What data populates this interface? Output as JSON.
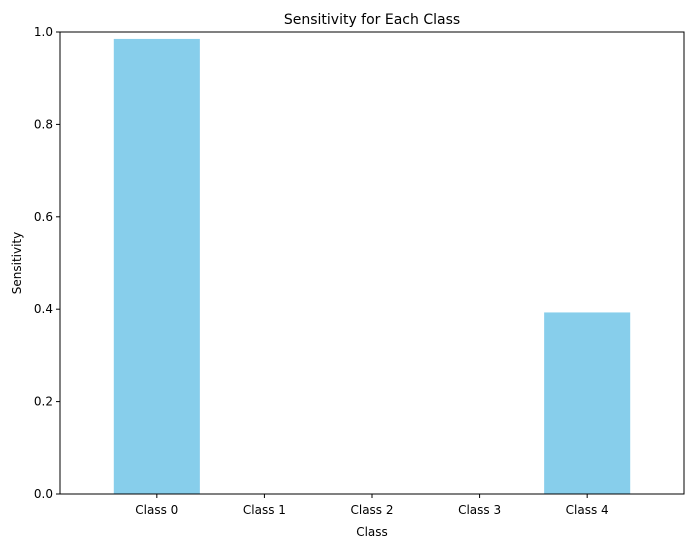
{
  "chart_data": {
    "type": "bar",
    "title": "Sensitivity for Each Class",
    "xlabel": "Class",
    "ylabel": "Sensitivity",
    "categories": [
      "Class 0",
      "Class 1",
      "Class 2",
      "Class 3",
      "Class 4"
    ],
    "values": [
      0.985,
      0.0,
      0.0,
      0.0,
      0.393
    ],
    "ylim": [
      0,
      1
    ],
    "yticks": [
      0.0,
      0.2,
      0.4,
      0.6,
      0.8,
      1.0
    ],
    "ytick_labels": [
      "0.0",
      "0.2",
      "0.4",
      "0.6",
      "0.8",
      "1.0"
    ],
    "grid": false,
    "legend": "none",
    "colors": {
      "bar": "#87ceeb",
      "axis": "#000000",
      "background": "#ffffff"
    }
  }
}
